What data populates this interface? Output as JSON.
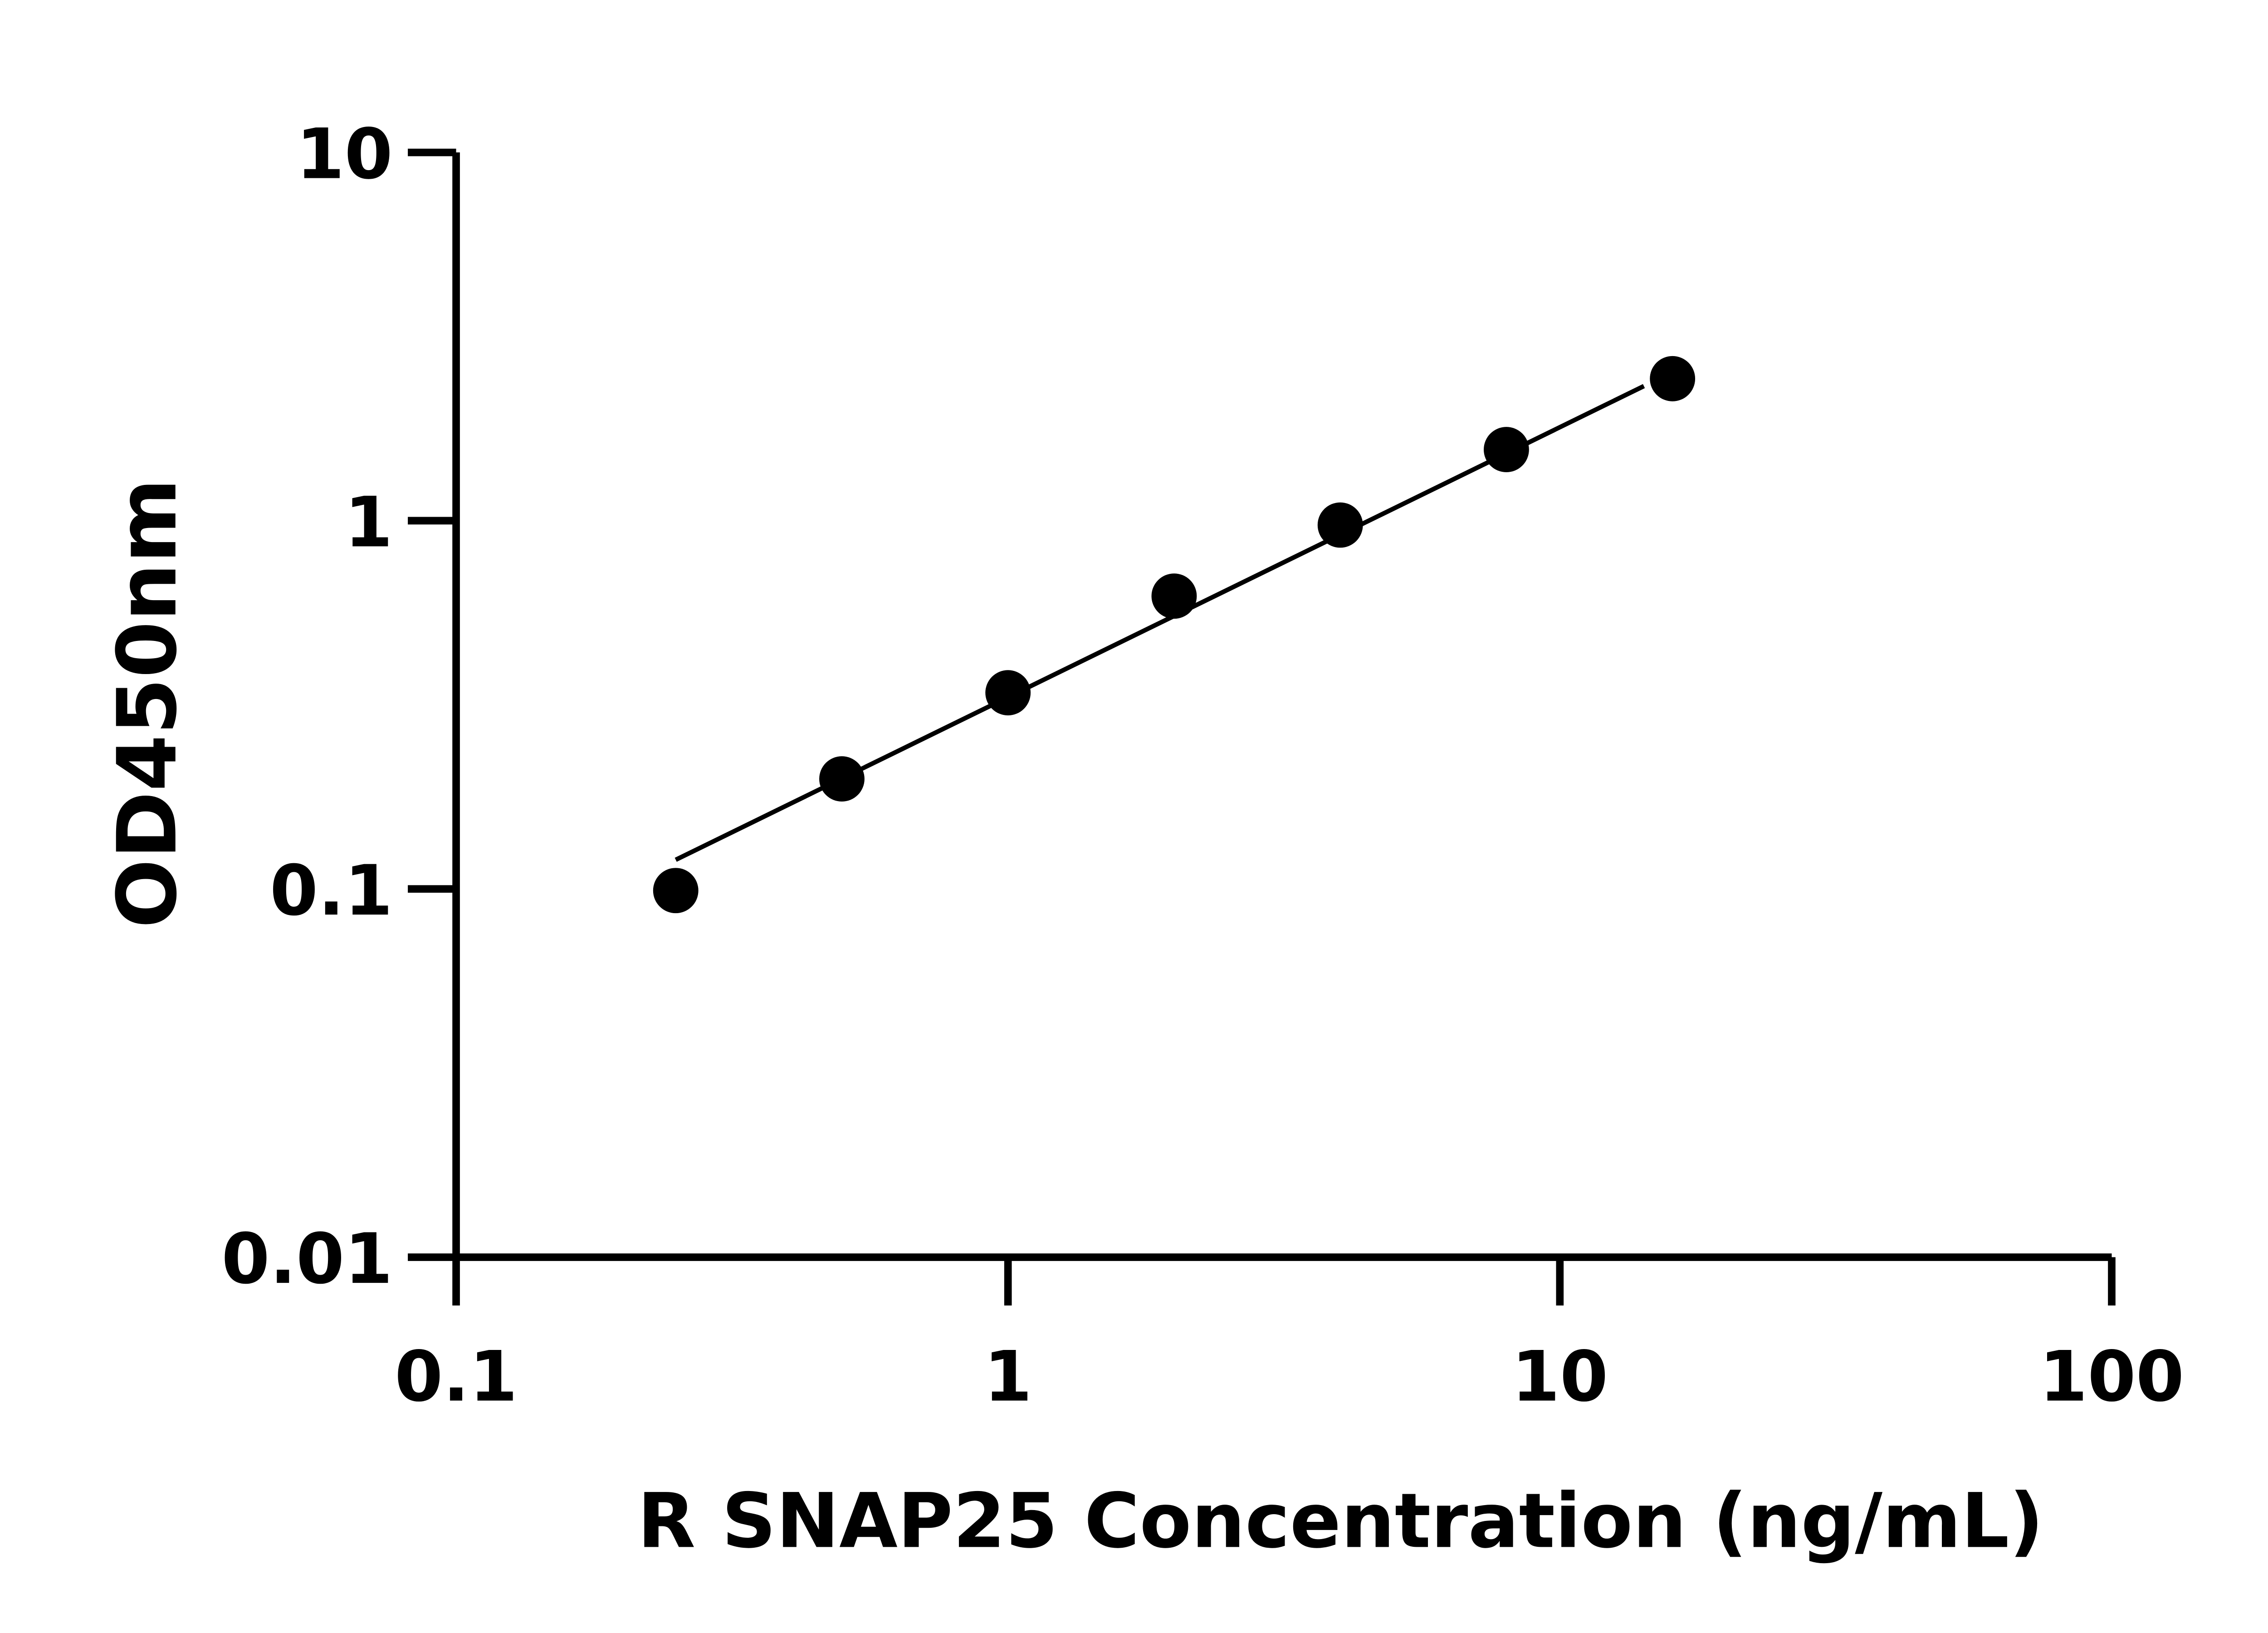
{
  "chart_data": {
    "type": "scatter",
    "title": "",
    "xlabel": "R SNAP25 Concentration (ng/mL)",
    "ylabel": "OD450nm",
    "xscale": "log",
    "yscale": "log",
    "xlim": [
      0.1,
      100
    ],
    "ylim": [
      0.01,
      10
    ],
    "xticks": [
      "0.1",
      "1",
      "10",
      "100"
    ],
    "yticks": [
      "0.01",
      "0.1",
      "1",
      "10"
    ],
    "grid": false,
    "legend": "none",
    "colors": {
      "points": "#000000",
      "line": "#000000"
    },
    "series": [
      {
        "x": [
          0.25,
          0.5,
          1,
          2,
          4,
          8,
          16
        ],
        "y": [
          0.099,
          0.199,
          0.341,
          0.624,
          0.973,
          1.56,
          2.43
        ]
      }
    ],
    "fit_line": {
      "x": [
        0.25,
        14.2
      ],
      "y": [
        0.12,
        2.32
      ]
    }
  }
}
